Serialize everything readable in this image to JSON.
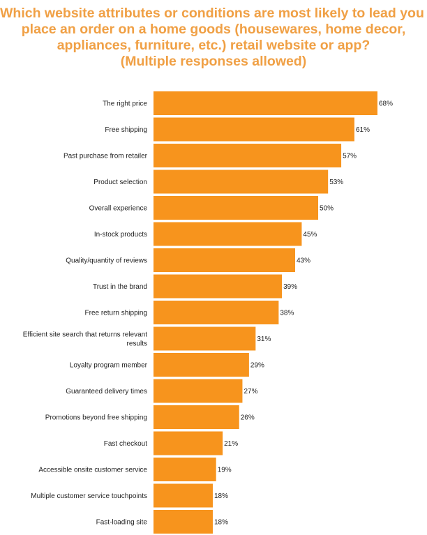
{
  "title_lines": [
    "Which website attributes or conditions are most likely to lead you to",
    "place an order on a home goods (housewares, home decor,",
    "appliances, furniture, etc.) retail website or app?",
    "(Multiple responses allowed)"
  ],
  "colors": {
    "bar": "#f7941d",
    "title": "#f0a045",
    "text": "#222222"
  },
  "chart_data": {
    "type": "bar",
    "orientation": "horizontal",
    "title": "Which website attributes or conditions are most likely to lead you to place an order on a home goods (housewares, home decor, appliances, furniture, etc.) retail website or app? (Multiple responses allowed)",
    "categories": [
      "The right price",
      "Free shipping",
      "Past purchase from retailer",
      "Product selection",
      "Overall experience",
      "In-stock products",
      "Quality/quantity of reviews",
      "Trust in the brand",
      "Free return shipping",
      "Efficient site search that returns relevant results",
      "Loyalty program member",
      "Guaranteed delivery times",
      "Promotions beyond free shipping",
      "Fast checkout",
      "Accessible onsite customer service",
      "Multiple customer service touchpoints",
      "Fast-loading site"
    ],
    "values": [
      68,
      61,
      57,
      53,
      50,
      45,
      43,
      39,
      38,
      31,
      29,
      27,
      26,
      21,
      19,
      18,
      18
    ],
    "value_labels": [
      "68%",
      "61%",
      "57%",
      "53%",
      "50%",
      "45%",
      "43%",
      "39%",
      "38%",
      "31%",
      "29%",
      "27%",
      "26%",
      "21%",
      "19%",
      "18%",
      "18%"
    ],
    "xlim": [
      0,
      68
    ],
    "grid": false,
    "legend": "none"
  }
}
